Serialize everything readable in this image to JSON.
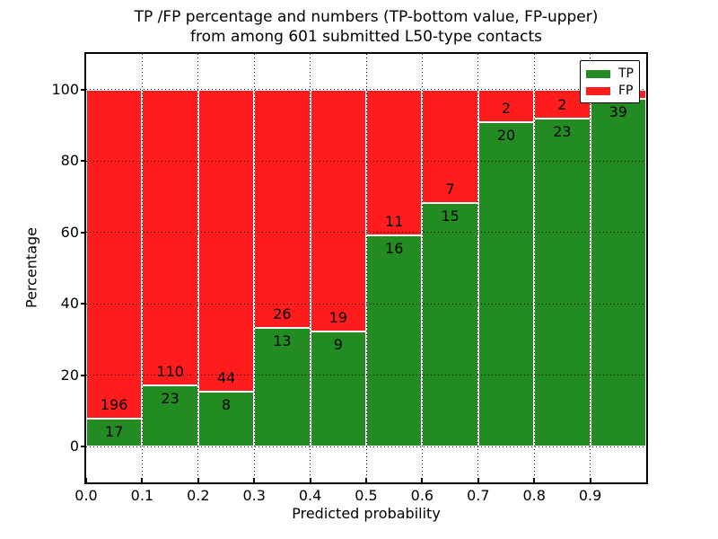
{
  "title": {
    "line1": "TP /FP percentage and numbers (TP-bottom value, FP-upper)",
    "line2": "from among 601 submitted L50-type contacts"
  },
  "legend": {
    "items": [
      {
        "label": "TP",
        "color": "#228B22"
      },
      {
        "label": "FP",
        "color": "#FF1C1C"
      }
    ]
  },
  "chart_data": {
    "type": "bar",
    "stacked": true,
    "title": "TP /FP percentage and numbers (TP-bottom value, FP-upper) from among 601 submitted L50-type contacts",
    "xlabel": "Predicted probability",
    "ylabel": "Percentage",
    "xlim": [
      0.0,
      1.0
    ],
    "ylim": [
      -10,
      110
    ],
    "x_tick_labels": [
      "0.0",
      "0.1",
      "0.2",
      "0.3",
      "0.4",
      "0.5",
      "0.6",
      "0.7",
      "0.8",
      "0.9"
    ],
    "y_tick_labels": [
      "0",
      "20",
      "40",
      "60",
      "80",
      "100"
    ],
    "y_gridlines": [
      0,
      20,
      40,
      60,
      80,
      100
    ],
    "grid": "dotted",
    "legend_position": "upper right",
    "total_contacts": 601,
    "series": [
      {
        "name": "TP",
        "color": "#228B22"
      },
      {
        "name": "FP",
        "color": "#FF1C1C"
      }
    ],
    "bins": [
      {
        "x_range": [
          0.0,
          0.1
        ],
        "tp": 17,
        "fp": 196
      },
      {
        "x_range": [
          0.1,
          0.2
        ],
        "tp": 23,
        "fp": 110
      },
      {
        "x_range": [
          0.2,
          0.3
        ],
        "tp": 8,
        "fp": 44
      },
      {
        "x_range": [
          0.3,
          0.4
        ],
        "tp": 13,
        "fp": 26
      },
      {
        "x_range": [
          0.4,
          0.5
        ],
        "tp": 9,
        "fp": 19
      },
      {
        "x_range": [
          0.5,
          0.6
        ],
        "tp": 16,
        "fp": 11
      },
      {
        "x_range": [
          0.6,
          0.7
        ],
        "tp": 15,
        "fp": 7
      },
      {
        "x_range": [
          0.7,
          0.8
        ],
        "tp": 20,
        "fp": 2
      },
      {
        "x_range": [
          0.8,
          0.9
        ],
        "tp": 23,
        "fp": 2
      },
      {
        "x_range": [
          0.9,
          1.0
        ],
        "tp": 39,
        "fp": 1
      }
    ]
  }
}
